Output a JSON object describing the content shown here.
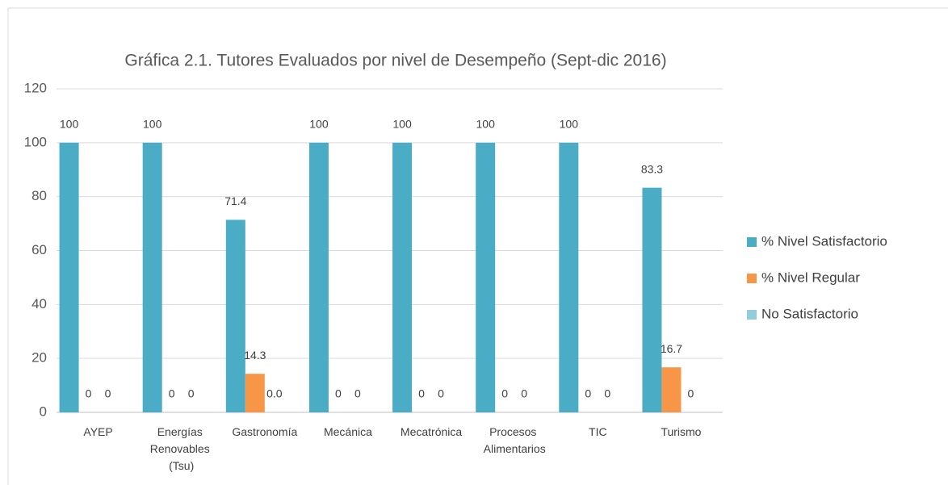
{
  "chart_data": {
    "type": "bar",
    "title": "Gráfica 2.1. Tutores Evaluados por nivel de Desempeño (Sept-dic 2016)",
    "categories": [
      "AYEP",
      "Energías Renovables (Tsu)",
      "Gastronomía",
      "Mecánica",
      "Mecatrónica",
      "Procesos Alimentarios",
      "TIC",
      "Turismo"
    ],
    "series": [
      {
        "name": "% Nivel Satisfactorio",
        "color": "#4bacc6",
        "values": [
          100,
          100,
          71.4,
          100,
          100,
          100,
          100,
          83.3
        ]
      },
      {
        "name": "% Nivel Regular",
        "color": "#f79646",
        "values": [
          0,
          0,
          14.3,
          0,
          0,
          0,
          0,
          16.7
        ]
      },
      {
        "name": "No Satisfactorio",
        "color": "#92cddc",
        "values": [
          0,
          0,
          0,
          0,
          0,
          0,
          0,
          0
        ],
        "value_labels": [
          "0",
          "0",
          "0.0",
          "0",
          "0",
          "0",
          "0",
          "0"
        ]
      }
    ],
    "ylim": [
      0,
      120
    ],
    "yticks": [
      0,
      20,
      40,
      60,
      80,
      100,
      120
    ],
    "grid": true,
    "legend": "right"
  }
}
